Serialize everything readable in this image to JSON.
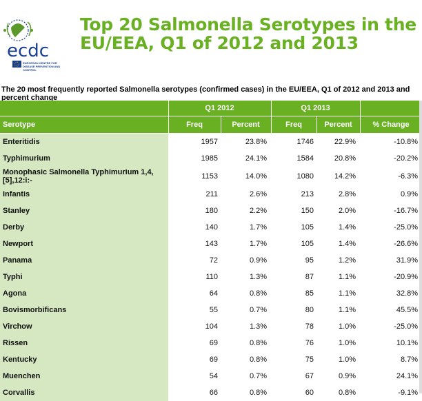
{
  "header": {
    "logo_text": "ecdc",
    "logo_caption": "EUROPEAN CENTRE FOR DISEASE PREVENTION AND CONTROL",
    "title": "Top 20 Salmonella Serotypes in the EU/EEA, Q1 of 2012 and 2013"
  },
  "subtitle": "The 20 most frequently reported Salmonella serotypes (confirmed cases) in the EU/EEA, Q1 of 2012 and 2013 and percent change",
  "colors": {
    "accent": "#6ab023",
    "serotype_bg": "#d5e8c1",
    "logo_blue": "#1a3f8f"
  },
  "table": {
    "group_headers": {
      "q1_2012": "Q1 2012",
      "q1_2013": "Q1 2013"
    },
    "columns": {
      "serotype": "Serotype",
      "freq_2012": "Freq",
      "pct_2012": "Percent",
      "freq_2013": "Freq",
      "pct_2013": "Percent",
      "change": "% Change"
    },
    "rows": [
      {
        "serotype": "Enteritidis",
        "freq_2012": "1957",
        "pct_2012": "23.8%",
        "freq_2013": "1746",
        "pct_2013": "22.9%",
        "change": "-10.8%"
      },
      {
        "serotype": "Typhimurium",
        "freq_2012": "1985",
        "pct_2012": "24.1%",
        "freq_2013": "1584",
        "pct_2013": "20.8%",
        "change": "-20.2%"
      },
      {
        "serotype": "Monophasic Salmonella Typhimurium 1,4,[5],12:i:-",
        "freq_2012": "1153",
        "pct_2012": "14.0%",
        "freq_2013": "1080",
        "pct_2013": "14.2%",
        "change": "-6.3%"
      },
      {
        "serotype": "Infantis",
        "freq_2012": "211",
        "pct_2012": "2.6%",
        "freq_2013": "213",
        "pct_2013": "2.8%",
        "change": "0.9%"
      },
      {
        "serotype": "Stanley",
        "freq_2012": "180",
        "pct_2012": "2.2%",
        "freq_2013": "150",
        "pct_2013": "2.0%",
        "change": "-16.7%"
      },
      {
        "serotype": "Derby",
        "freq_2012": "140",
        "pct_2012": "1.7%",
        "freq_2013": "105",
        "pct_2013": "1.4%",
        "change": "-25.0%"
      },
      {
        "serotype": "Newport",
        "freq_2012": "143",
        "pct_2012": "1.7%",
        "freq_2013": "105",
        "pct_2013": "1.4%",
        "change": "-26.6%"
      },
      {
        "serotype": "Panama",
        "freq_2012": "72",
        "pct_2012": "0.9%",
        "freq_2013": "95",
        "pct_2013": "1.2%",
        "change": "31.9%"
      },
      {
        "serotype": "Typhi",
        "freq_2012": "110",
        "pct_2012": "1.3%",
        "freq_2013": "87",
        "pct_2013": "1.1%",
        "change": "-20.9%"
      },
      {
        "serotype": "Agona",
        "freq_2012": "64",
        "pct_2012": "0.8%",
        "freq_2013": "85",
        "pct_2013": "1.1%",
        "change": "32.8%"
      },
      {
        "serotype": "Bovismorbificans",
        "freq_2012": "55",
        "pct_2012": "0.7%",
        "freq_2013": "80",
        "pct_2013": "1.1%",
        "change": "45.5%"
      },
      {
        "serotype": "Virchow",
        "freq_2012": "104",
        "pct_2012": "1.3%",
        "freq_2013": "78",
        "pct_2013": "1.0%",
        "change": "-25.0%"
      },
      {
        "serotype": "Rissen",
        "freq_2012": "69",
        "pct_2012": "0.8%",
        "freq_2013": "76",
        "pct_2013": "1.0%",
        "change": "10.1%"
      },
      {
        "serotype": "Kentucky",
        "freq_2012": "69",
        "pct_2012": "0.8%",
        "freq_2013": "75",
        "pct_2013": "1.0%",
        "change": "8.7%"
      },
      {
        "serotype": "Muenchen",
        "freq_2012": "54",
        "pct_2012": "0.7%",
        "freq_2013": "67",
        "pct_2013": "0.9%",
        "change": "24.1%"
      },
      {
        "serotype": "Corvallis",
        "freq_2012": "66",
        "pct_2012": "0.8%",
        "freq_2013": "60",
        "pct_2013": "0.8%",
        "change": "-9.1%"
      }
    ]
  }
}
